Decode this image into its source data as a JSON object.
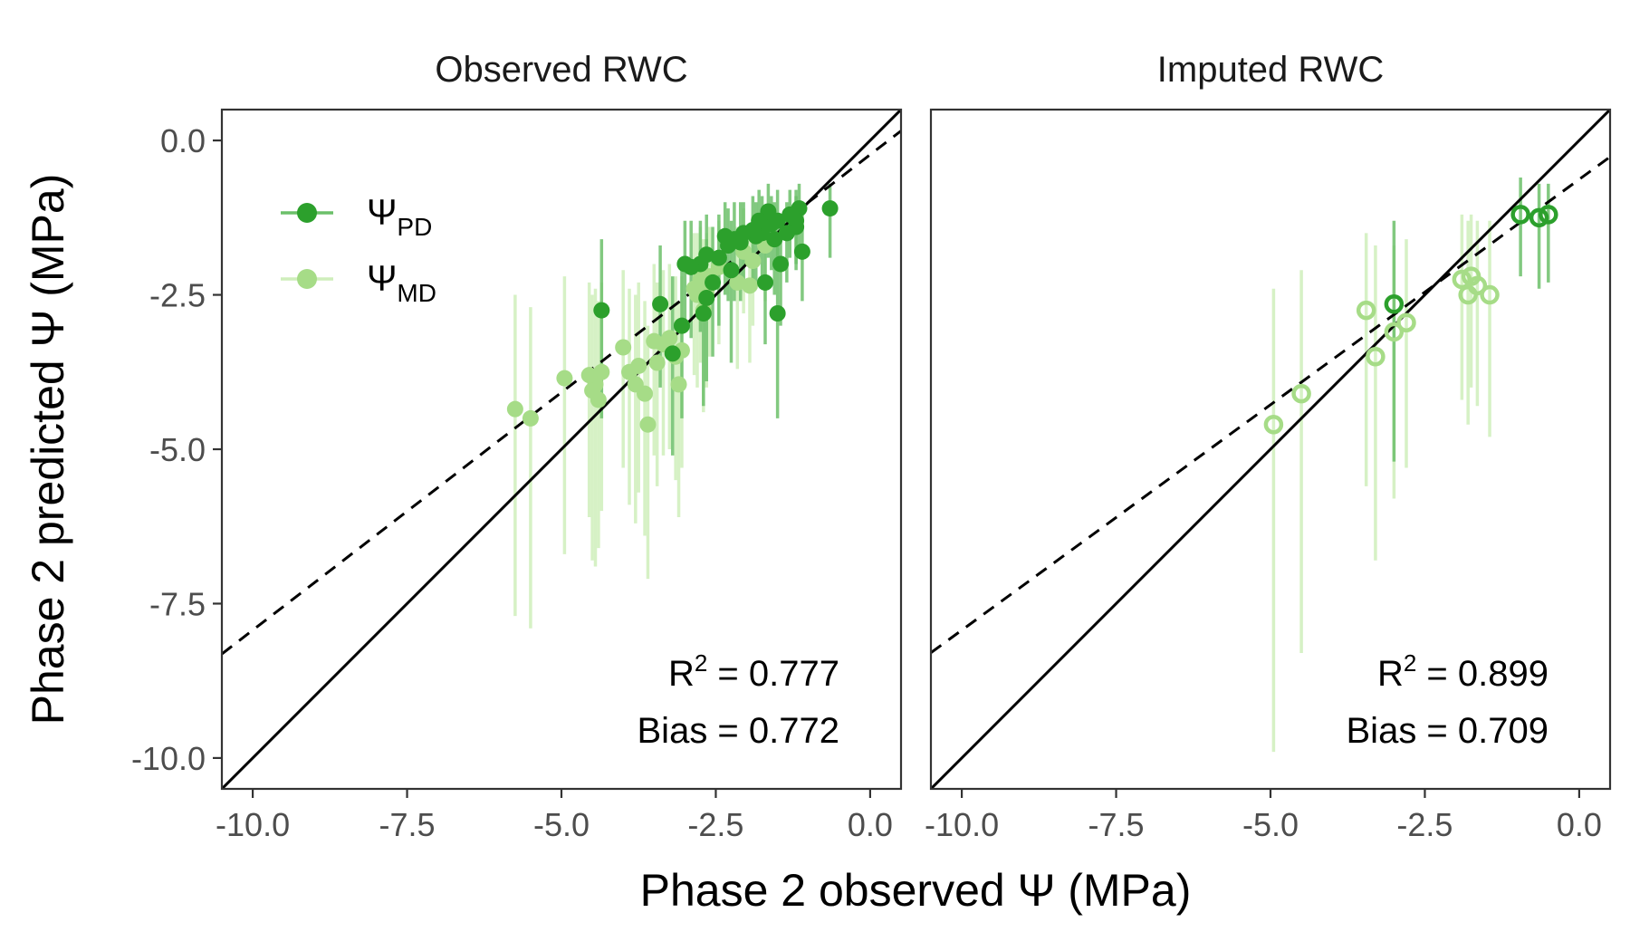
{
  "figure": {
    "ylabel": "Phase 2 predicted Ψ (MPa)",
    "xlabel": "Phase 2 observed Ψ (MPa)",
    "colors": {
      "pd": "#2ca02c",
      "md": "#a6dc87",
      "pd_bar": "#6cc06a",
      "md_bar": "#cfeebb",
      "axis": "#333333",
      "tick": "#4d4d4d"
    },
    "legend": [
      {
        "symbol": "Ψ",
        "sub": "PD",
        "series": "pd"
      },
      {
        "symbol": "Ψ",
        "sub": "MD",
        "series": "md"
      }
    ]
  },
  "chart_data": [
    {
      "type": "scatter",
      "title": "Observed RWC",
      "marker": "filled",
      "xlim": [
        -10.5,
        0.5
      ],
      "ylim": [
        -10.5,
        0.5
      ],
      "ticks": [
        -10.0,
        -7.5,
        -5.0,
        -2.5,
        0.0
      ],
      "tick_labels": [
        "-10.0",
        "-7.5",
        "-5.0",
        "-2.5",
        "0.0"
      ],
      "one_to_one": true,
      "fit_line": {
        "slope": 0.77,
        "intercept": -0.23
      },
      "annotation": {
        "r2_label": "R",
        "r2_sup": "2",
        "r2_value": " = 0.777",
        "bias_text": "Bias = 0.772"
      },
      "series": [
        {
          "name": "PD",
          "points": [
            [
              -0.65,
              -1.1,
              -1.9,
              -0.7
            ],
            [
              -1.1,
              -1.8,
              -2.6,
              -1.0
            ],
            [
              -1.15,
              -1.1,
              -1.8,
              -0.7
            ],
            [
              -1.2,
              -1.3,
              -2.0,
              -0.8
            ],
            [
              -1.2,
              -1.4,
              -2.1,
              -0.9
            ],
            [
              -1.3,
              -1.2,
              -1.9,
              -0.8
            ],
            [
              -1.35,
              -1.5,
              -2.3,
              -1.0
            ],
            [
              -1.45,
              -2.0,
              -3.0,
              -1.2
            ],
            [
              -1.5,
              -2.8,
              -4.5,
              -1.6
            ],
            [
              -1.5,
              -1.3,
              -2.0,
              -0.8
            ],
            [
              -1.55,
              -1.6,
              -2.5,
              -1.0
            ],
            [
              -1.6,
              -1.35,
              -2.1,
              -0.9
            ],
            [
              -1.65,
              -1.15,
              -1.9,
              -0.7
            ],
            [
              -1.7,
              -2.3,
              -3.3,
              -1.4
            ],
            [
              -1.75,
              -1.5,
              -2.4,
              -0.9
            ],
            [
              -1.8,
              -1.3,
              -2.0,
              -0.8
            ],
            [
              -1.85,
              -1.55,
              -2.4,
              -1.0
            ],
            [
              -1.9,
              -1.45,
              -2.3,
              -0.9
            ],
            [
              -2.05,
              -1.5,
              -2.4,
              -1.0
            ],
            [
              -2.1,
              -1.65,
              -2.6,
              -1.0
            ],
            [
              -2.2,
              -1.6,
              -2.6,
              -1.0
            ],
            [
              -2.25,
              -2.1,
              -3.6,
              -1.3
            ],
            [
              -2.3,
              -1.7,
              -2.6,
              -1.1
            ],
            [
              -2.35,
              -1.55,
              -2.5,
              -1.0
            ],
            [
              -2.45,
              -1.9,
              -3.0,
              -1.2
            ],
            [
              -2.55,
              -2.3,
              -3.5,
              -1.4
            ],
            [
              -2.65,
              -2.55,
              -3.9,
              -1.6
            ],
            [
              -2.65,
              -1.85,
              -2.9,
              -1.2
            ],
            [
              -2.7,
              -2.8,
              -4.3,
              -1.8
            ],
            [
              -2.75,
              -2.0,
              -3.1,
              -1.3
            ],
            [
              -2.9,
              -2.05,
              -3.2,
              -1.3
            ],
            [
              -3.0,
              -2.0,
              -3.1,
              -1.3
            ],
            [
              -3.05,
              -3.0,
              -4.5,
              -1.9
            ],
            [
              -3.2,
              -3.45,
              -5.1,
              -2.2
            ],
            [
              -3.4,
              -2.65,
              -4.0,
              -1.7
            ],
            [
              -4.35,
              -2.75,
              -4.5,
              -1.6
            ]
          ]
        },
        {
          "name": "MD",
          "points": [
            [
              -1.7,
              -1.7,
              -2.6,
              -1.1
            ],
            [
              -1.9,
              -1.95,
              -3.0,
              -1.2
            ],
            [
              -1.95,
              -2.35,
              -3.6,
              -1.5
            ],
            [
              -2.05,
              -1.8,
              -2.8,
              -1.1
            ],
            [
              -2.15,
              -2.3,
              -3.7,
              -1.4
            ],
            [
              -2.45,
              -2.05,
              -3.3,
              -1.3
            ],
            [
              -2.6,
              -2.2,
              -3.5,
              -1.4
            ],
            [
              -2.65,
              -2.45,
              -4.0,
              -1.5
            ],
            [
              -2.7,
              -2.75,
              -4.4,
              -1.6
            ],
            [
              -2.75,
              -2.25,
              -3.6,
              -1.4
            ],
            [
              -2.8,
              -2.5,
              -4.0,
              -1.5
            ],
            [
              -2.85,
              -2.4,
              -3.8,
              -1.5
            ],
            [
              -3.05,
              -3.4,
              -5.3,
              -2.2
            ],
            [
              -3.1,
              -3.95,
              -6.1,
              -2.6
            ],
            [
              -3.15,
              -3.5,
              -5.5,
              -2.2
            ],
            [
              -3.25,
              -3.2,
              -5.0,
              -2.0
            ],
            [
              -3.35,
              -3.3,
              -5.1,
              -2.1
            ],
            [
              -3.45,
              -3.6,
              -5.6,
              -2.3
            ],
            [
              -3.5,
              -3.25,
              -5.1,
              -2.0
            ],
            [
              -3.6,
              -4.6,
              -7.1,
              -3.0
            ],
            [
              -3.65,
              -4.1,
              -6.4,
              -2.6
            ],
            [
              -3.75,
              -3.65,
              -5.7,
              -2.3
            ],
            [
              -3.8,
              -3.95,
              -6.2,
              -2.5
            ],
            [
              -3.9,
              -3.75,
              -5.9,
              -2.4
            ],
            [
              -4.0,
              -3.35,
              -5.3,
              -2.1
            ],
            [
              -4.35,
              -3.75,
              -6.0,
              -2.3
            ],
            [
              -4.4,
              -4.2,
              -6.6,
              -2.6
            ],
            [
              -4.45,
              -3.95,
              -6.9,
              -2.4
            ],
            [
              -4.5,
              -4.05,
              -6.8,
              -2.5
            ],
            [
              -4.55,
              -3.8,
              -6.1,
              -2.3
            ],
            [
              -4.95,
              -3.85,
              -6.7,
              -2.2
            ],
            [
              -5.5,
              -4.5,
              -7.9,
              -2.7
            ],
            [
              -5.75,
              -4.35,
              -7.7,
              -2.5
            ]
          ]
        }
      ]
    },
    {
      "type": "scatter",
      "title": "Imputed RWC",
      "marker": "open",
      "xlim": [
        -10.5,
        0.5
      ],
      "ylim": [
        -10.5,
        0.5
      ],
      "ticks": [
        -10.0,
        -7.5,
        -5.0,
        -2.5,
        0.0
      ],
      "tick_labels": [
        "-10.0",
        "-7.5",
        "-5.0",
        "-2.5",
        "0.0"
      ],
      "one_to_one": true,
      "fit_line": {
        "slope": 0.73,
        "intercept": -0.63
      },
      "annotation": {
        "r2_label": "R",
        "r2_sup": "2",
        "r2_value": " = 0.899",
        "bias_text": "Bias = 0.709"
      },
      "series": [
        {
          "name": "PD",
          "points": [
            [
              -0.5,
              -1.2,
              -2.3,
              -0.7
            ],
            [
              -0.65,
              -1.25,
              -2.4,
              -0.7
            ],
            [
              -0.95,
              -1.2,
              -2.2,
              -0.6
            ],
            [
              -3.0,
              -2.65,
              -5.2,
              -1.3
            ]
          ]
        },
        {
          "name": "MD",
          "points": [
            [
              -1.45,
              -2.5,
              -4.8,
              -1.3
            ],
            [
              -1.65,
              -2.35,
              -4.3,
              -1.3
            ],
            [
              -1.75,
              -2.2,
              -4.0,
              -1.2
            ],
            [
              -1.8,
              -2.5,
              -4.6,
              -1.3
            ],
            [
              -1.9,
              -2.25,
              -4.2,
              -1.2
            ],
            [
              -2.8,
              -2.95,
              -5.3,
              -1.6
            ],
            [
              -3.0,
              -3.1,
              -5.8,
              -1.7
            ],
            [
              -3.3,
              -3.5,
              -6.8,
              -1.7
            ],
            [
              -3.45,
              -2.75,
              -5.6,
              -1.5
            ],
            [
              -4.5,
              -4.1,
              -8.3,
              -2.1
            ],
            [
              -4.95,
              -4.6,
              -9.9,
              -2.4
            ]
          ]
        }
      ]
    }
  ]
}
